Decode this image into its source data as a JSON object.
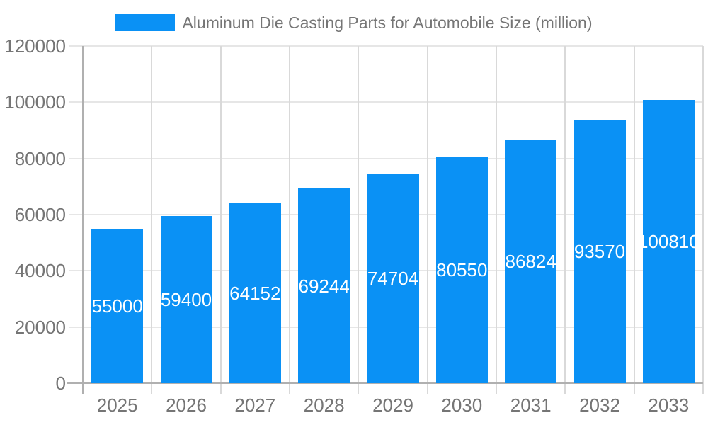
{
  "chart_data": {
    "type": "bar",
    "title": "Aluminum Die Casting Parts for Automobile Size (million)",
    "legend_position": "top",
    "categories": [
      "2025",
      "2026",
      "2027",
      "2028",
      "2029",
      "2030",
      "2031",
      "2032",
      "2033"
    ],
    "series": [
      {
        "name": "Aluminum Die Casting Parts for Automobile Size (million)",
        "values": [
          55000,
          59400,
          64152,
          69244,
          74704,
          80550,
          86824,
          93570,
          100810
        ]
      }
    ],
    "xlabel": "",
    "ylabel": "",
    "ylim": [
      0,
      120000
    ],
    "yticks": [
      0,
      20000,
      40000,
      60000,
      80000,
      100000,
      120000
    ],
    "grid": "on",
    "bar_value_labels_shown": true
  },
  "colors": {
    "bar": "#0a91f5",
    "hgrid": "#e6e6e6",
    "vgrid": "#d9d9d9",
    "axis": "#b0b0b0",
    "tick_label": "#757575",
    "bar_label": "#ffffff",
    "legend_text": "#757575",
    "background": "#ffffff"
  }
}
